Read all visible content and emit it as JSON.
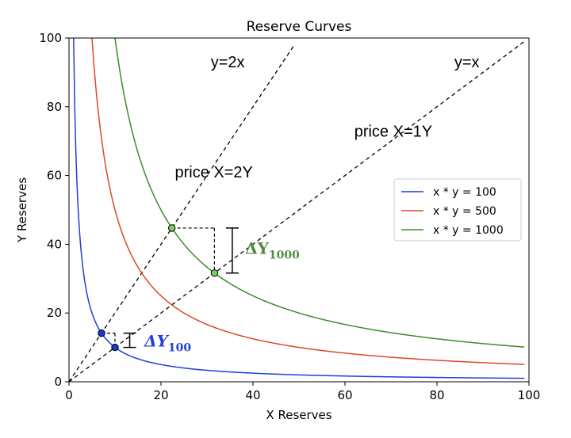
{
  "chart_data": {
    "type": "line",
    "title": "Reserve Curves",
    "xlabel": "X Reserves",
    "ylabel": "Y Reserves",
    "xlim": [
      0,
      100
    ],
    "ylim": [
      0,
      100
    ],
    "xticks": [
      0,
      20,
      40,
      60,
      80,
      100
    ],
    "yticks": [
      0,
      20,
      40,
      60,
      80,
      100
    ],
    "grid": false,
    "legend_position": "center-right",
    "series": [
      {
        "name": "x * y = 100",
        "k": 100,
        "color": "#1f3fd9",
        "x_range": [
          1,
          99
        ]
      },
      {
        "name": "x * y = 500",
        "k": 500,
        "color": "#e0452b",
        "x_range": [
          5,
          99
        ]
      },
      {
        "name": "x * y = 1000",
        "k": 1000,
        "color": "#3a8c2a",
        "x_range": [
          10,
          99
        ]
      }
    ],
    "reference_lines": [
      {
        "label": "y=2x",
        "slope": 2,
        "x_end": 49,
        "style": "dashed"
      },
      {
        "label": "y=x",
        "slope": 1,
        "x_end": 99,
        "style": "dashed"
      }
    ],
    "annotations": {
      "price_2y": "price X=2Y",
      "price_1y": "price X=1Y",
      "delta_100": {
        "main": "ΔY",
        "sub": "100",
        "color": "#1f3fd9"
      },
      "delta_1000": {
        "main": "ΔY",
        "sub": "1000",
        "color": "#4f8a3f"
      }
    },
    "points": [
      {
        "x": 7.07,
        "y": 14.14,
        "fill": "#1a3acb"
      },
      {
        "x": 10,
        "y": 10,
        "fill": "#1a3acb"
      },
      {
        "x": 22.36,
        "y": 44.72,
        "fill": "#6fd65a"
      },
      {
        "x": 31.62,
        "y": 31.62,
        "fill": "#6fd65a"
      }
    ]
  }
}
